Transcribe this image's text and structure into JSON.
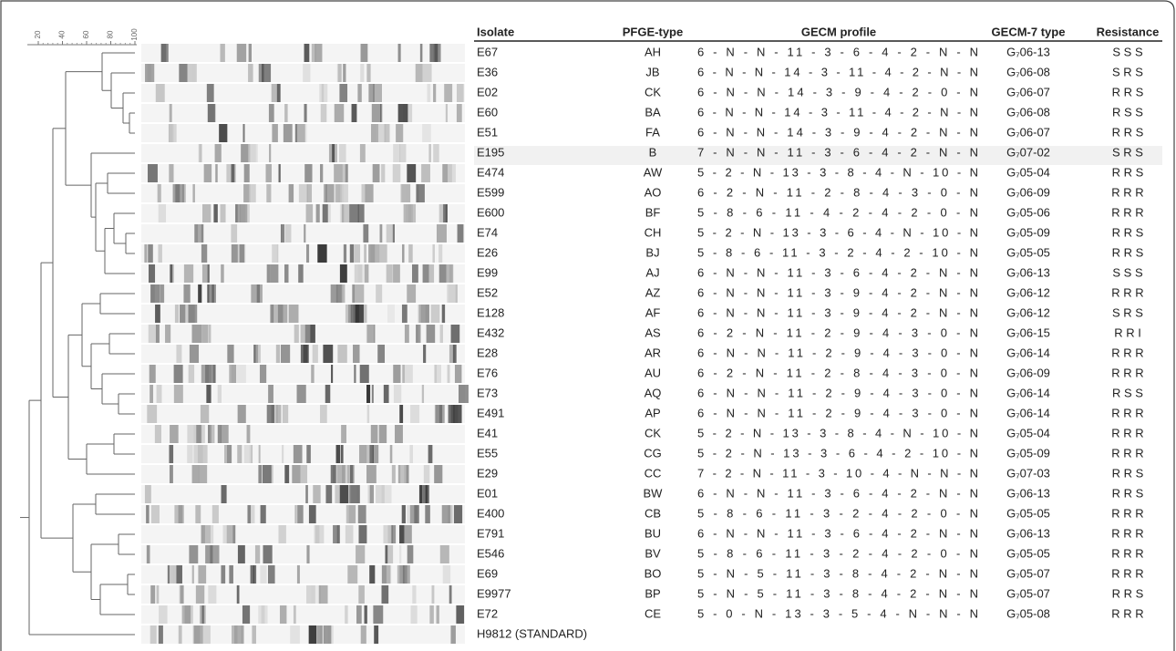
{
  "scale": {
    "ticks": [
      "20",
      "40",
      "60",
      "80",
      "100"
    ]
  },
  "table": {
    "header": [
      "Isolate",
      "PFGE-type",
      "GECM profile",
      "GECM-7 type",
      "Resistance"
    ],
    "rows": [
      [
        "E67",
        "AH",
        "6 - N - N - 11 - 3 - 6 - 4 - 2 - N - N",
        "G₇06-13",
        "S S S"
      ],
      [
        "E36",
        "JB",
        "6 - N - N - 14 - 3 - 11 - 4 - 2 - N - N",
        "G₇06-08",
        "S R S"
      ],
      [
        "E02",
        "CK",
        "6 - N - N - 14 - 3 - 9 - 4 - 2 - 0 - N",
        "G₇06-07",
        "R R S"
      ],
      [
        "E60",
        "BA",
        "6 - N - N - 14 - 3 - 11 - 4 - 2 - N - N",
        "G₇06-08",
        "R S S"
      ],
      [
        "E51",
        "FA",
        "6 - N - N - 14 - 3 - 9 - 4 - 2 - N - N",
        "G₇06-07",
        "R R S"
      ],
      [
        "E195",
        "B",
        "7 - N - N - 11 - 3 - 6 - 4 - 2 - N - N",
        "G₇07-02",
        "S R S"
      ],
      [
        "E474",
        "AW",
        "5 - 2 - N - 13 - 3 - 8 - 4 - N - 10 - N",
        "G₇05-04",
        "R R S"
      ],
      [
        "E599",
        "AO",
        "6 - 2 - N - 11 - 2 - 8 - 4 - 3 - 0 - N",
        "G₇06-09",
        "R R R"
      ],
      [
        "E600",
        "BF",
        "5 - 8 - 6 - 11 - 4 - 2 - 4 - 2 - 0 - N",
        "G₇05-06",
        "R R R"
      ],
      [
        "E74",
        "CH",
        "5 - 2 - N - 13 - 3 - 6 - 4 - N - 10 - N",
        "G₇05-09",
        "R R S"
      ],
      [
        "E26",
        "BJ",
        "5 - 8 - 6 - 11 - 3 - 2 - 4 - 2 - 10 - N",
        "G₇05-05",
        "R R S"
      ],
      [
        "E99",
        "AJ",
        "6 - N - N - 11 - 3 - 6 - 4 - 2 - N - N",
        "G₇06-13",
        "S S S"
      ],
      [
        "E52",
        "AZ",
        "6 - N - N - 11 - 3 - 9 - 4 - 2 - N - N",
        "G₇06-12",
        "R R R"
      ],
      [
        "E128",
        "AF",
        "6 - N - N - 11 - 3 - 9 - 4 - 2 - N - N",
        "G₇06-12",
        "S R S"
      ],
      [
        "E432",
        "AS",
        "6 - 2 - N - 11 - 2 - 9 - 4 - 3 - 0 - N",
        "G₇06-15",
        "R R I"
      ],
      [
        "E28",
        "AR",
        "6 - N - N - 11 - 2 - 9 - 4 - 3 - 0 - N",
        "G₇06-14",
        "R R R"
      ],
      [
        "E76",
        "AU",
        "6 - 2 - N - 11 - 2 - 8 - 4 - 3 - 0 - N",
        "G₇06-09",
        "R R R"
      ],
      [
        "E73",
        "AQ",
        "6 - N - N - 11 - 2 - 9 - 4 - 3 - 0 - N",
        "G₇06-14",
        "R S S"
      ],
      [
        "E491",
        "AP",
        "6 - N - N - 11 - 2 - 9 - 4 - 3 - 0 - N",
        "G₇06-14",
        "R R R"
      ],
      [
        "E41",
        "CK",
        "5 - 2 - N - 13 - 3 - 8 - 4 - N - 10 - N",
        "G₇05-04",
        "R R R"
      ],
      [
        "E55",
        "CG",
        "5 - 2 - N - 13 - 3 - 6 - 4 - 2 - 10 - N",
        "G₇05-09",
        "R R R"
      ],
      [
        "E29",
        "CC",
        "7 - 2 - N - 11 - 3 - 10 - 4 - N - N - N",
        "G₇07-03",
        "R R S"
      ],
      [
        "E01",
        "BW",
        "6 - N - N - 11 - 3 - 6 - 4 - 2 - N - N",
        "G₇06-13",
        "R R S"
      ],
      [
        "E400",
        "CB",
        "5 - 8 - 6 - 11 - 3 - 2 - 4 - 2 - 0 - N",
        "G₇05-05",
        "R R R"
      ],
      [
        "E791",
        "BU",
        "6 - N - N - 11 - 3 - 6 - 4 - 2 - N - N",
        "G₇06-13",
        "R R R"
      ],
      [
        "E546",
        "BV",
        "5 - 8 - 6 - 11 - 3 - 2 - 4 - 2 - 0 - N",
        "G₇05-05",
        "R R R"
      ],
      [
        "E69",
        "BO",
        "5 - N - 5 - 11 - 3 - 8 - 4 - 2 - N - N",
        "G₇05-07",
        "R R R"
      ],
      [
        "E9977",
        "BP",
        "5 - N - 5 - 11 - 3 - 8 - 4 - 2 - N - N",
        "G₇05-07",
        "R R S"
      ],
      [
        "E72",
        "CE",
        "5 - 0 - N - 13 - 3 - 5 - 4 - N - N - N",
        "G₇05-08",
        "R R R"
      ],
      [
        "H9812 (STANDARD)"
      ]
    ]
  }
}
